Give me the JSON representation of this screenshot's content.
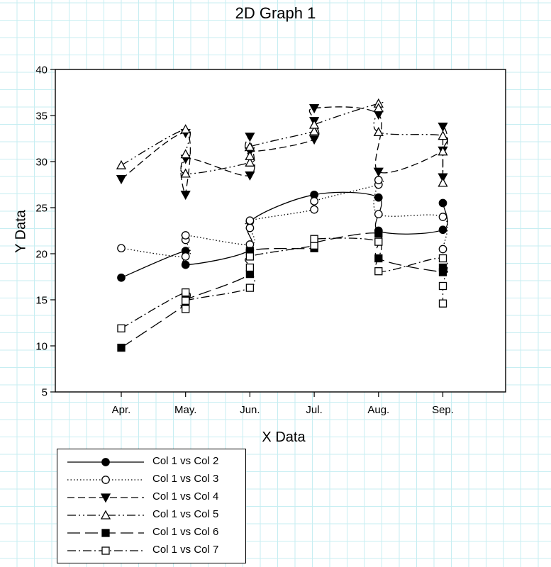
{
  "chart_data": {
    "type": "line",
    "title": "2D Graph 1",
    "xlabel": "X Data",
    "ylabel": "Y Data",
    "ylim": [
      5,
      40
    ],
    "yticks": [
      5,
      10,
      15,
      20,
      25,
      30,
      35,
      40
    ],
    "categories": [
      "Apr.",
      "May.",
      "Jun.",
      "Jul.",
      "Aug.",
      "Sep."
    ],
    "grid": true,
    "legend_position": "bottom-left",
    "series": [
      {
        "name": "Col 1 vs Col 2",
        "marker": "filled-circle",
        "line": "solid",
        "points": [
          [
            0,
            17.4
          ],
          [
            1,
            20.3
          ],
          [
            1,
            18.8
          ],
          [
            2,
            20.4
          ],
          [
            2,
            23.5
          ],
          [
            3,
            26.4
          ],
          [
            4,
            26.1
          ],
          [
            4,
            22.5
          ],
          [
            5,
            22.6
          ],
          [
            5,
            25.5
          ]
        ]
      },
      {
        "name": "Col 1 vs Col 3",
        "marker": "open-circle",
        "line": "dotted",
        "points": [
          [
            0,
            20.6
          ],
          [
            1,
            19.7
          ],
          [
            1,
            21.5
          ],
          [
            1,
            22.0
          ],
          [
            2,
            21.0
          ],
          [
            2,
            22.8
          ],
          [
            2,
            23.6
          ],
          [
            3,
            24.8
          ],
          [
            3,
            25.7
          ],
          [
            4,
            27.5
          ],
          [
            4,
            28.0
          ],
          [
            4,
            24.3
          ],
          [
            5,
            24.0
          ],
          [
            5,
            20.5
          ]
        ]
      },
      {
        "name": "Col 1 vs Col 4",
        "marker": "filled-triangle-down",
        "line": "dashed",
        "points": [
          [
            0,
            28.1
          ],
          [
            1,
            33.1
          ],
          [
            1,
            26.4
          ],
          [
            1,
            30.3
          ],
          [
            2,
            28.5
          ],
          [
            2,
            32.7
          ],
          [
            2,
            31.1
          ],
          [
            3,
            32.4
          ],
          [
            3,
            34.4
          ],
          [
            3,
            35.8
          ],
          [
            4,
            35.1
          ],
          [
            4,
            28.9
          ],
          [
            5,
            31.2
          ],
          [
            5,
            33.8
          ],
          [
            5,
            28.3
          ]
        ]
      },
      {
        "name": "Col 1 vs Col 5",
        "marker": "open-triangle",
        "line": "dash-dot-dot",
        "points": [
          [
            0,
            29.6
          ],
          [
            1,
            33.5
          ],
          [
            1,
            30.8
          ],
          [
            1,
            28.7
          ],
          [
            2,
            29.9
          ],
          [
            2,
            30.6
          ],
          [
            2,
            31.6
          ],
          [
            3,
            33.3
          ],
          [
            3,
            34.0
          ],
          [
            4,
            36.3
          ],
          [
            4,
            35.8
          ],
          [
            4,
            33.2
          ],
          [
            5,
            32.8
          ],
          [
            5,
            31.1
          ],
          [
            5,
            27.7
          ]
        ]
      },
      {
        "name": "Col 1 vs Col 6",
        "marker": "filled-square",
        "line": "long-dash",
        "points": [
          [
            0,
            9.8
          ],
          [
            1,
            14.5
          ],
          [
            1,
            15.0
          ],
          [
            2,
            17.8
          ],
          [
            2,
            20.3
          ],
          [
            3,
            20.6
          ],
          [
            3,
            21.2
          ],
          [
            4,
            22.2
          ],
          [
            4,
            19.5
          ],
          [
            5,
            18.0
          ],
          [
            5,
            18.5
          ]
        ]
      },
      {
        "name": "Col 1 vs Col 7",
        "marker": "open-square",
        "line": "dash-dot",
        "points": [
          [
            0,
            11.9
          ],
          [
            1,
            15.8
          ],
          [
            1,
            14.0
          ],
          [
            1,
            14.9
          ],
          [
            2,
            16.3
          ],
          [
            2,
            18.5
          ],
          [
            2,
            19.7
          ],
          [
            3,
            20.9
          ],
          [
            3,
            21.6
          ],
          [
            4,
            21.3
          ],
          [
            4,
            18.1
          ],
          [
            5,
            19.5
          ],
          [
            5,
            16.5
          ],
          [
            5,
            14.6
          ]
        ]
      }
    ]
  }
}
